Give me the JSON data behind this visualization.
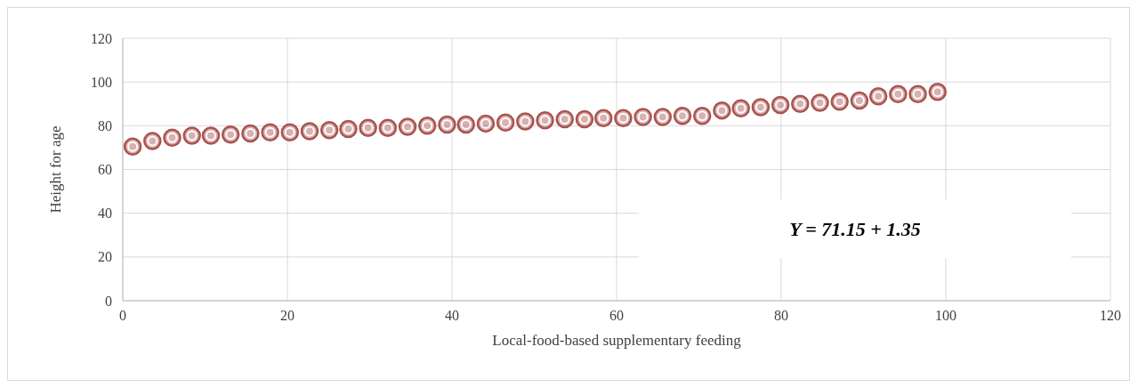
{
  "chart_data": {
    "type": "scatter",
    "xlabel": "Local-food-based supplementary feeding",
    "ylabel": "Height for age",
    "x": [
      1.2,
      3.6,
      6.0,
      8.4,
      10.7,
      13.1,
      15.5,
      17.9,
      20.3,
      22.7,
      25.1,
      27.4,
      29.8,
      32.2,
      34.6,
      37.0,
      39.4,
      41.7,
      44.1,
      46.5,
      48.9,
      51.3,
      53.7,
      56.1,
      58.4,
      60.8,
      63.2,
      65.6,
      68.0,
      70.4,
      72.8,
      75.1,
      77.5,
      79.9,
      82.3,
      84.7,
      87.1,
      89.5,
      91.8,
      94.2,
      96.6,
      99.0
    ],
    "series": [
      {
        "color": "#a9524f",
        "values": [
          70.5,
          73,
          74.5,
          75.5,
          75.5,
          76,
          76.5,
          77,
          77,
          77.5,
          78,
          78.5,
          79,
          79,
          79.5,
          80,
          80.5,
          80.5,
          81,
          81.5,
          82,
          82.5,
          83,
          83,
          83.5,
          83.5,
          84,
          84,
          84.5,
          84.5,
          87,
          88,
          88.5,
          89.5,
          90,
          90.5,
          91,
          91.5,
          93.5,
          94.5,
          94.5,
          95.5
        ]
      }
    ],
    "xlim": [
      0,
      120
    ],
    "xticks": [
      0,
      20,
      40,
      60,
      80,
      100,
      120
    ],
    "ylim": [
      0,
      120
    ],
    "yticks": [
      0,
      20,
      40,
      60,
      80,
      100,
      120
    ],
    "grid": true,
    "marker": "circle",
    "annotations": [
      "Y = 71.15 + 1.35"
    ]
  }
}
